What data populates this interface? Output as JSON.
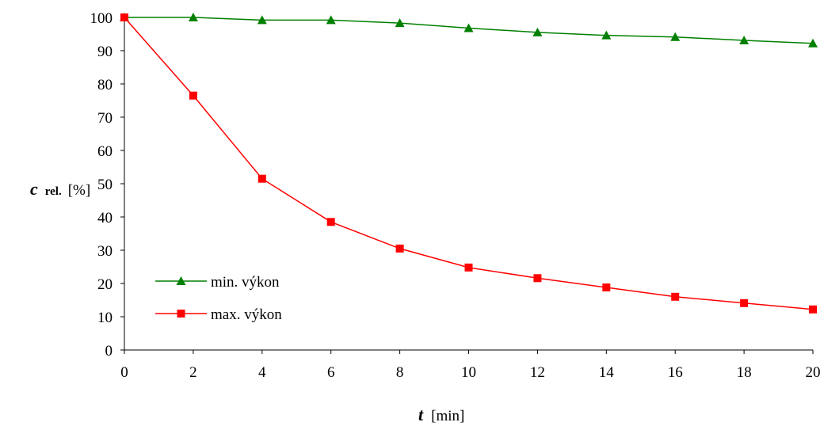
{
  "chart_data": {
    "type": "line",
    "x": [
      0,
      2,
      4,
      6,
      8,
      10,
      12,
      14,
      16,
      18,
      20
    ],
    "xlim": [
      0,
      20
    ],
    "ylim": [
      0,
      100
    ],
    "x_ticks": [
      "0",
      "2",
      "4",
      "6",
      "8",
      "10",
      "12",
      "14",
      "16",
      "18",
      "20"
    ],
    "y_ticks": [
      "0",
      "10",
      "20",
      "30",
      "40",
      "50",
      "60",
      "70",
      "80",
      "90",
      "100"
    ],
    "ylabel": {
      "main": "c",
      "sub": "rel.",
      "unit": "[%]"
    },
    "xlabel": {
      "main": "t",
      "unit": "[min]"
    },
    "grid": false,
    "legend_position": "left",
    "series": [
      {
        "name": "min. výkon",
        "color": "#008000",
        "marker": "triangle",
        "values": [
          100,
          100,
          99.2,
          99.2,
          98.3,
          96.8,
          95.5,
          94.6,
          94.1,
          93.1,
          92.2
        ]
      },
      {
        "name": "max. výkon",
        "color": "#ff0000",
        "marker": "square",
        "values": [
          100,
          76.5,
          51.5,
          38.5,
          30.5,
          24.8,
          21.6,
          18.8,
          16.0,
          14.1,
          12.2
        ]
      }
    ]
  }
}
